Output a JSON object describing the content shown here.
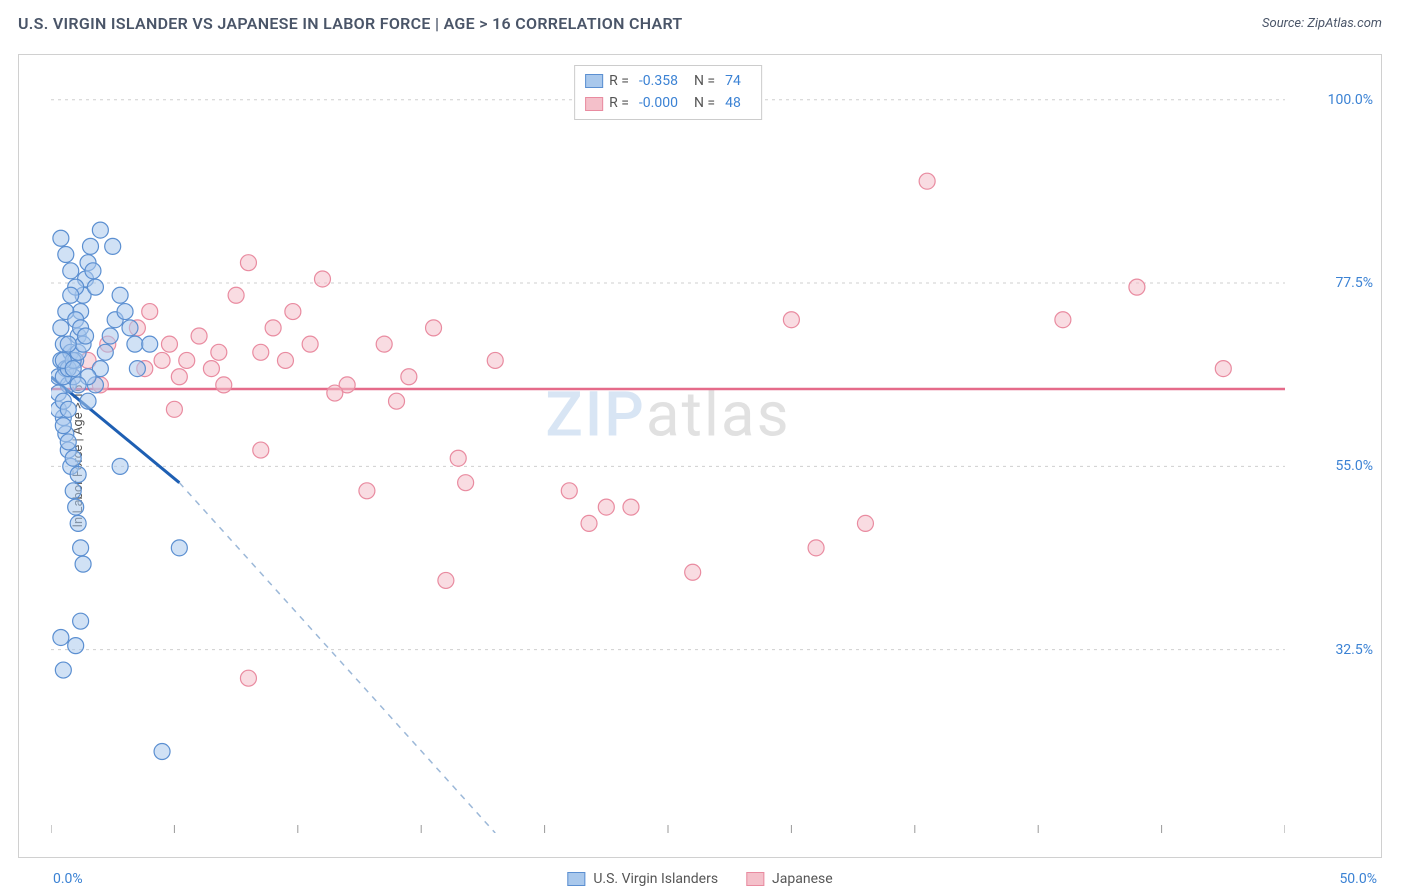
{
  "header": {
    "title": "U.S. VIRGIN ISLANDER VS JAPANESE IN LABOR FORCE | AGE > 16 CORRELATION CHART",
    "source": "Source: ZipAtlas.com"
  },
  "chart": {
    "type": "scatter",
    "ylabel": "In Labor Force | Age > 16",
    "xlim": [
      0,
      50
    ],
    "ylim": [
      10,
      105
    ],
    "x_ticks": [
      0,
      5,
      10,
      15,
      20,
      25,
      30,
      35,
      40,
      45,
      50
    ],
    "y_grid": [
      32.5,
      55.0,
      77.5,
      100.0
    ],
    "y_tick_labels": [
      "32.5%",
      "55.0%",
      "77.5%",
      "100.0%"
    ],
    "corner_bl": "0.0%",
    "corner_br": "50.0%",
    "background_color": "#ffffff",
    "grid_color": "#cfcfcf",
    "axis_color": "#999999",
    "marker_radius": 8,
    "marker_opacity": 0.55,
    "watermark": {
      "part1": "ZIP",
      "part2": "atlas"
    },
    "series": [
      {
        "id": "usvi",
        "name": "U.S. Virgin Islanders",
        "fill": "#a9c8ec",
        "stroke": "#5b8fd1",
        "trend_color": "#1e5fb3",
        "trend_dash_color": "#9cb8d8",
        "legend": {
          "R": "-0.358",
          "N": "74"
        },
        "trend_solid": [
          [
            0,
            66
          ],
          [
            5.2,
            53
          ]
        ],
        "trend_dash": [
          [
            5.2,
            53
          ],
          [
            18,
            10
          ]
        ],
        "points": [
          [
            0.3,
            66
          ],
          [
            0.4,
            68
          ],
          [
            0.5,
            70
          ],
          [
            0.6,
            67
          ],
          [
            0.7,
            65
          ],
          [
            0.8,
            69
          ],
          [
            0.9,
            66
          ],
          [
            1.0,
            68
          ],
          [
            1.1,
            71
          ],
          [
            1.2,
            74
          ],
          [
            1.3,
            76
          ],
          [
            1.4,
            78
          ],
          [
            1.5,
            80
          ],
          [
            1.6,
            82
          ],
          [
            1.7,
            79
          ],
          [
            1.8,
            77
          ],
          [
            0.5,
            61
          ],
          [
            0.6,
            59
          ],
          [
            0.7,
            57
          ],
          [
            0.8,
            55
          ],
          [
            0.9,
            52
          ],
          [
            1.0,
            50
          ],
          [
            1.1,
            48
          ],
          [
            1.2,
            45
          ],
          [
            1.3,
            43
          ],
          [
            0.4,
            34
          ],
          [
            1.0,
            33
          ],
          [
            1.2,
            36
          ],
          [
            0.5,
            30
          ],
          [
            4.5,
            20
          ],
          [
            1.5,
            63
          ],
          [
            1.8,
            65
          ],
          [
            2.0,
            67
          ],
          [
            2.2,
            69
          ],
          [
            2.4,
            71
          ],
          [
            2.6,
            73
          ],
          [
            2.8,
            76
          ],
          [
            3.0,
            74
          ],
          [
            3.2,
            72
          ],
          [
            3.4,
            70
          ],
          [
            0.4,
            83
          ],
          [
            0.6,
            81
          ],
          [
            0.8,
            79
          ],
          [
            1.0,
            77
          ],
          [
            2.0,
            84
          ],
          [
            2.5,
            82
          ],
          [
            2.8,
            55
          ],
          [
            3.5,
            67
          ],
          [
            4.0,
            70
          ],
          [
            5.2,
            45
          ],
          [
            0.5,
            66
          ],
          [
            0.7,
            67
          ],
          [
            0.9,
            68
          ],
          [
            1.1,
            69
          ],
          [
            1.3,
            70
          ],
          [
            1.5,
            66
          ],
          [
            0.3,
            62
          ],
          [
            0.5,
            60
          ],
          [
            0.7,
            58
          ],
          [
            0.9,
            56
          ],
          [
            1.1,
            54
          ],
          [
            0.4,
            72
          ],
          [
            0.6,
            74
          ],
          [
            0.8,
            76
          ],
          [
            1.0,
            73
          ],
          [
            1.2,
            72
          ],
          [
            1.4,
            71
          ],
          [
            0.3,
            64
          ],
          [
            0.5,
            63
          ],
          [
            0.7,
            62
          ],
          [
            0.5,
            68
          ],
          [
            0.7,
            70
          ],
          [
            0.9,
            67
          ],
          [
            1.1,
            65
          ]
        ]
      },
      {
        "id": "japanese",
        "name": "Japanese",
        "fill": "#f4c0ca",
        "stroke": "#e98ba0",
        "trend_color": "#e56b8a",
        "legend": {
          "R": "-0.000",
          "N": "48"
        },
        "trend_solid": [
          [
            0,
            64.5
          ],
          [
            50,
            64.5
          ]
        ],
        "points": [
          [
            1.5,
            68
          ],
          [
            2.3,
            70
          ],
          [
            3.5,
            72
          ],
          [
            4.0,
            74
          ],
          [
            4.8,
            70
          ],
          [
            5.5,
            68
          ],
          [
            6.0,
            71
          ],
          [
            6.8,
            69
          ],
          [
            7.5,
            76
          ],
          [
            8.0,
            80
          ],
          [
            8.5,
            69
          ],
          [
            9.0,
            72
          ],
          [
            9.8,
            74
          ],
          [
            10.5,
            70
          ],
          [
            11.0,
            78
          ],
          [
            12.0,
            65
          ],
          [
            13.5,
            70
          ],
          [
            14.5,
            66
          ],
          [
            15.5,
            72
          ],
          [
            16.0,
            41
          ],
          [
            16.8,
            53
          ],
          [
            18.0,
            68
          ],
          [
            5.0,
            62
          ],
          [
            8.5,
            57
          ],
          [
            12.8,
            52
          ],
          [
            14.0,
            63
          ],
          [
            16.5,
            56
          ],
          [
            21.0,
            52
          ],
          [
            22.5,
            50
          ],
          [
            21.8,
            48
          ],
          [
            23.5,
            50
          ],
          [
            26.0,
            42
          ],
          [
            30.0,
            73
          ],
          [
            31.0,
            45
          ],
          [
            33.0,
            48
          ],
          [
            35.5,
            90
          ],
          [
            41.0,
            73
          ],
          [
            44.0,
            77
          ],
          [
            47.5,
            67
          ],
          [
            8.0,
            29
          ],
          [
            3.8,
            67
          ],
          [
            4.5,
            68
          ],
          [
            5.2,
            66
          ],
          [
            6.5,
            67
          ],
          [
            2.0,
            65
          ],
          [
            9.5,
            68
          ],
          [
            11.5,
            64
          ],
          [
            7.0,
            65
          ]
        ]
      }
    ],
    "legend_bottom": [
      {
        "label": "U.S. Virgin Islanders",
        "fill": "#a9c8ec",
        "stroke": "#5b8fd1"
      },
      {
        "label": "Japanese",
        "fill": "#f4c0ca",
        "stroke": "#e98ba0"
      }
    ]
  }
}
